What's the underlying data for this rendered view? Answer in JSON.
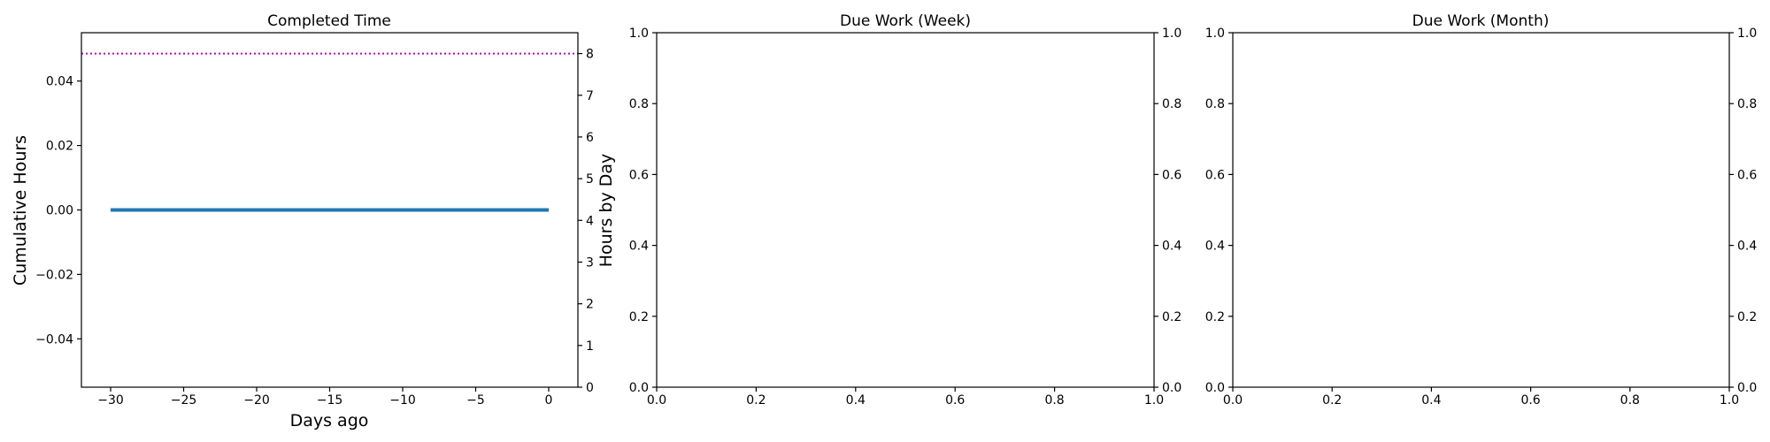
{
  "chart_data": [
    {
      "type": "line",
      "title": "Completed Time",
      "xlabel": "Days ago",
      "ylabel": "Cumulative Hours",
      "ylabel_right": "Hours by Day",
      "xlim": [
        -32,
        2
      ],
      "ylim": [
        -0.055,
        0.055
      ],
      "ylim_right": [
        0,
        8.5
      ],
      "x_ticks": [
        -30,
        -25,
        -20,
        -15,
        -10,
        -5,
        0
      ],
      "x_tick_labels": [
        "−30",
        "−25",
        "−20",
        "−15",
        "−10",
        "−5",
        "0"
      ],
      "y_ticks": [
        -0.04,
        -0.02,
        0.0,
        0.02,
        0.04
      ],
      "y_tick_labels": [
        "−0.04",
        "−0.02",
        "0.00",
        "0.02",
        "0.04"
      ],
      "y_right_ticks": [
        0,
        1,
        2,
        3,
        4,
        5,
        6,
        7,
        8
      ],
      "y_right_tick_labels": [
        "0",
        "1",
        "2",
        "3",
        "4",
        "5",
        "6",
        "7",
        "8"
      ],
      "series": [
        {
          "x": [
            -30,
            0
          ],
          "y": [
            0,
            0
          ],
          "color": "#1f77b4",
          "axis": "left",
          "style": "solid"
        },
        {
          "y_constant": 8,
          "color": "#bf00bf",
          "axis": "right",
          "style": "dotted"
        }
      ],
      "grid": false
    },
    {
      "type": "line",
      "title": "Due Work (Week)",
      "xlim": [
        0,
        1
      ],
      "ylim": [
        0,
        1
      ],
      "ylim_right": [
        0,
        1
      ],
      "x_ticks": [
        0,
        0.2,
        0.4,
        0.6,
        0.8,
        1.0
      ],
      "x_tick_labels": [
        "0.0",
        "0.2",
        "0.4",
        "0.6",
        "0.8",
        "1.0"
      ],
      "y_ticks": [
        0,
        0.2,
        0.4,
        0.6,
        0.8,
        1.0
      ],
      "y_tick_labels": [
        "0.0",
        "0.2",
        "0.4",
        "0.6",
        "0.8",
        "1.0"
      ],
      "y_right_ticks": [
        0,
        0.2,
        0.4,
        0.6,
        0.8,
        1.0
      ],
      "y_right_tick_labels": [
        "0.0",
        "0.2",
        "0.4",
        "0.6",
        "0.8",
        "1.0"
      ],
      "series": [],
      "grid": false
    },
    {
      "type": "line",
      "title": "Due Work (Month)",
      "xlim": [
        0,
        1
      ],
      "ylim": [
        0,
        1
      ],
      "ylim_right": [
        0,
        1
      ],
      "x_ticks": [
        0,
        0.2,
        0.4,
        0.6,
        0.8,
        1.0
      ],
      "x_tick_labels": [
        "0.0",
        "0.2",
        "0.4",
        "0.6",
        "0.8",
        "1.0"
      ],
      "y_ticks": [
        0,
        0.2,
        0.4,
        0.6,
        0.8,
        1.0
      ],
      "y_tick_labels": [
        "0.0",
        "0.2",
        "0.4",
        "0.6",
        "0.8",
        "1.0"
      ],
      "y_right_ticks": [
        0,
        0.2,
        0.4,
        0.6,
        0.8,
        1.0
      ],
      "y_right_tick_labels": [
        "0.0",
        "0.2",
        "0.4",
        "0.6",
        "0.8",
        "1.0"
      ],
      "series": [],
      "grid": false
    }
  ]
}
